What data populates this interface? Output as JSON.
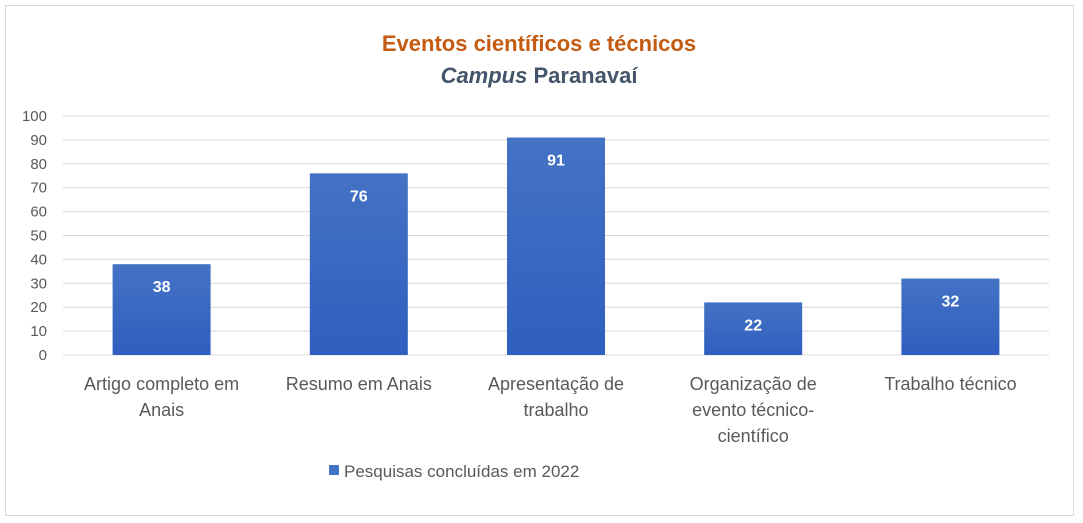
{
  "chart_data": {
    "type": "bar",
    "title": "Eventos científicos e técnicos",
    "subtitle": {
      "italic": "Campus",
      "rest": "Paranavaí"
    },
    "categories": [
      [
        "Artigo completo em",
        "Anais"
      ],
      [
        "Resumo em Anais"
      ],
      [
        "Apresentação de",
        "trabalho"
      ],
      [
        "Organização de",
        "evento técnico-",
        "científico"
      ],
      [
        "Trabalho técnico"
      ]
    ],
    "series": [
      {
        "name": "Pesquisas concluídas em 2022",
        "values": [
          38,
          76,
          91,
          22,
          32
        ]
      }
    ],
    "ylim": [
      0,
      100
    ],
    "yticks": [
      0,
      10,
      20,
      30,
      40,
      50,
      60,
      70,
      80,
      90,
      100
    ],
    "grid": true,
    "legend": "bottom",
    "data_labels": true,
    "colors": {
      "title": "#c55a11",
      "subtitle": "#44546a",
      "bar_top": "#4472c4",
      "bar_bottom": "#2f5fbf",
      "grid": "#d9d9d9",
      "axis_text": "#595959",
      "label_text": "#ffffff"
    }
  }
}
